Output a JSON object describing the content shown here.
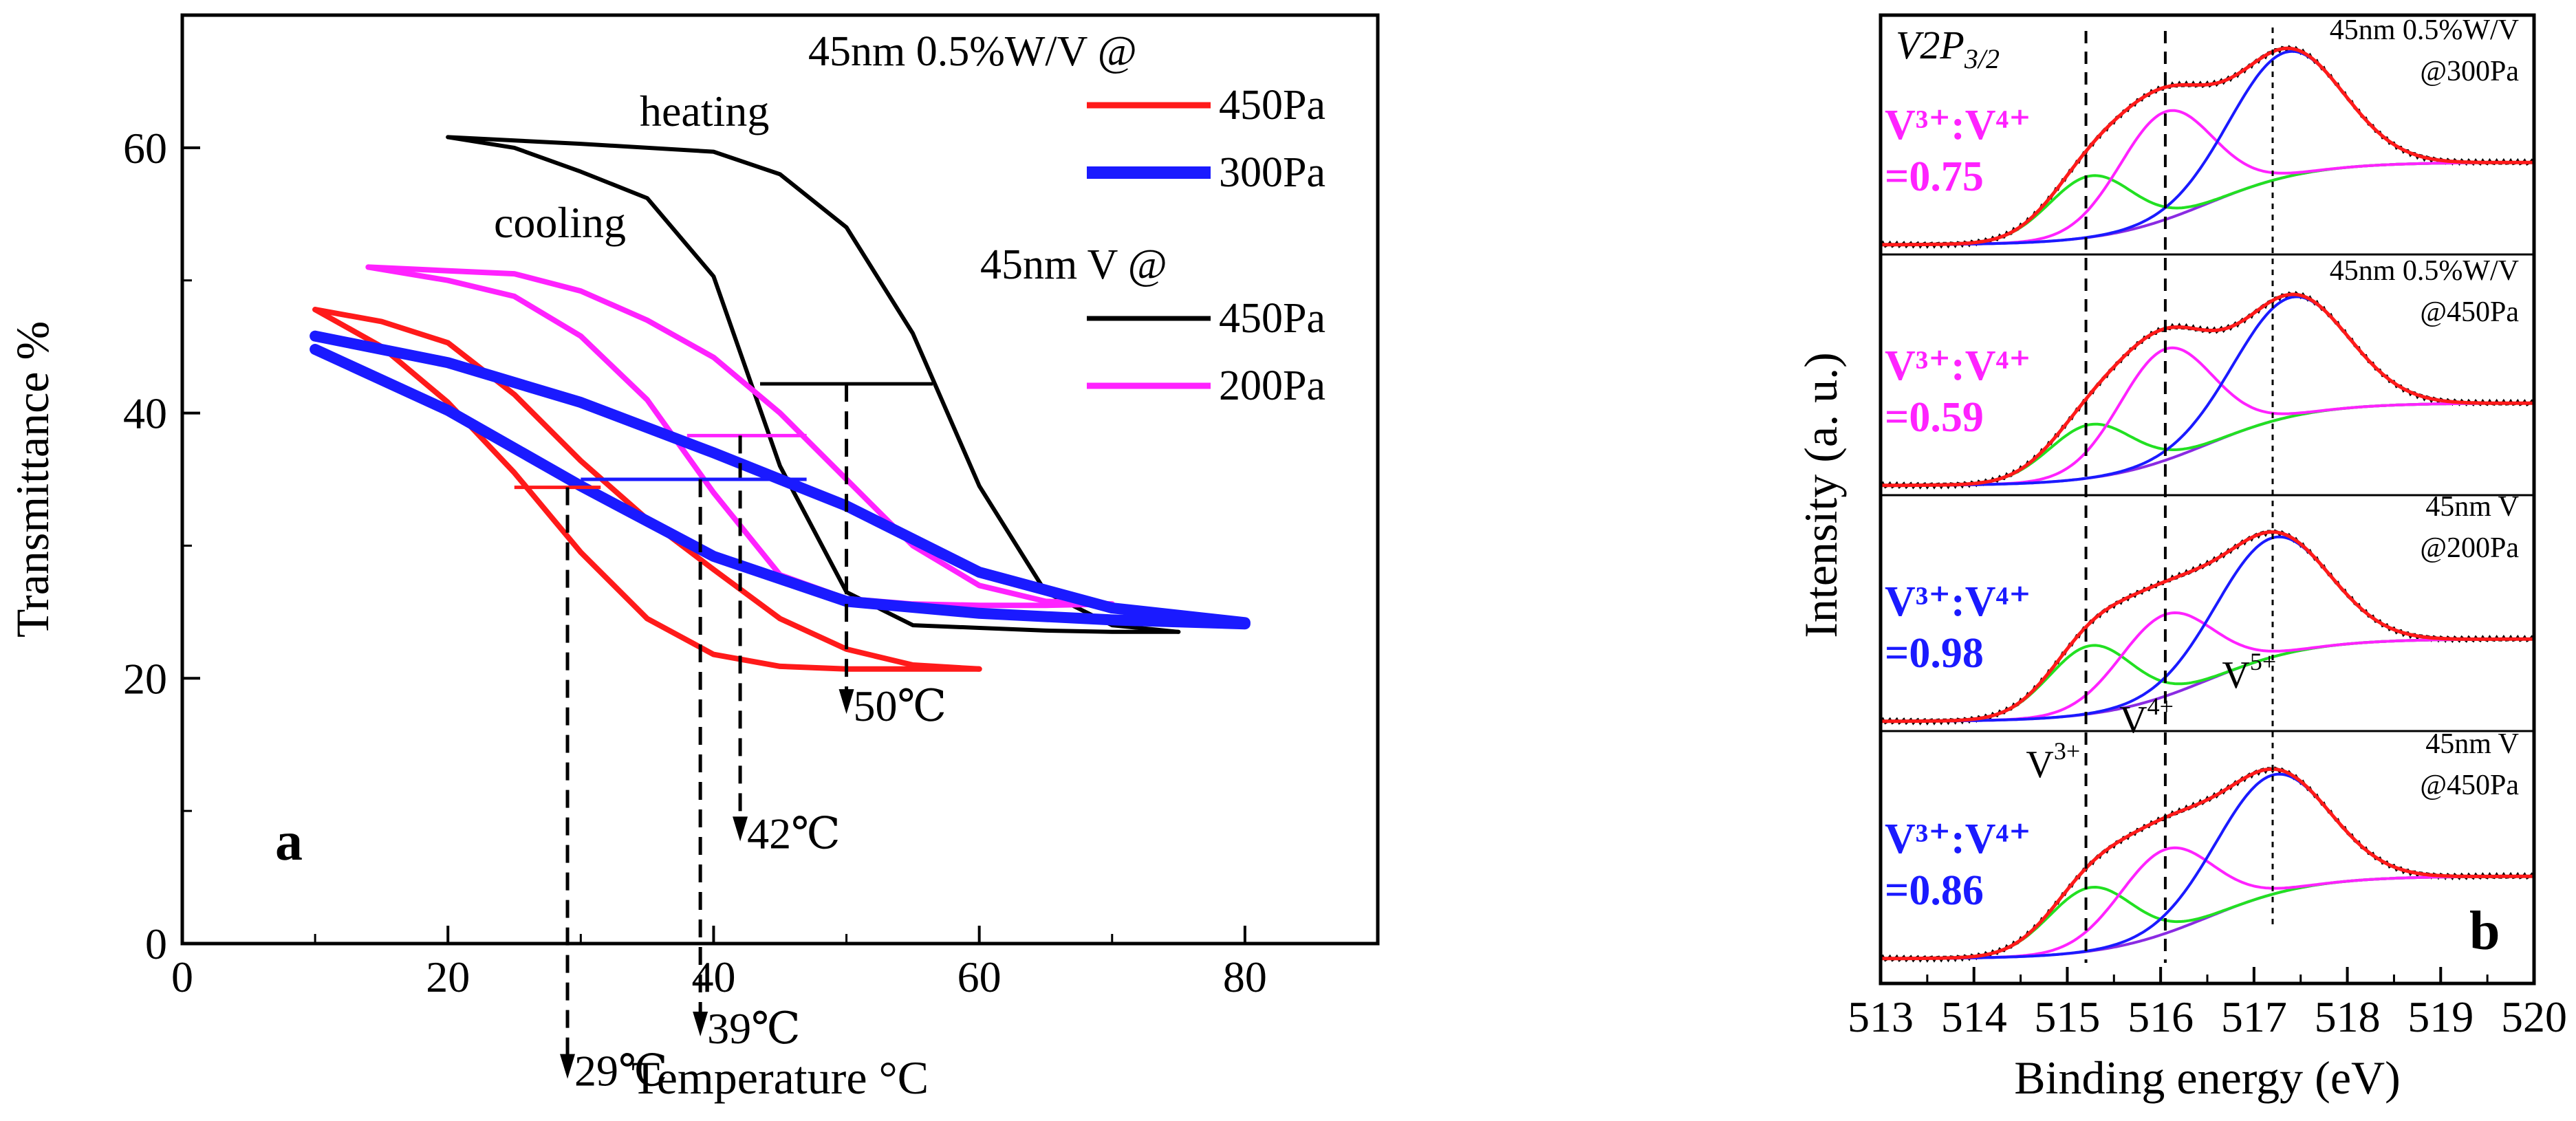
{
  "chart_data": [
    {
      "type": "line",
      "panel_label": "a",
      "xlabel": "Temperature °C",
      "ylabel": "Transmittance %",
      "xlim": [
        0,
        90
      ],
      "ylim": [
        0,
        70
      ],
      "xticks": [
        0,
        20,
        40,
        60,
        80
      ],
      "yticks": [
        0,
        20,
        40,
        60
      ],
      "legend_groups": [
        {
          "title": "45nm 0.5%W/V @",
          "entries": [
            {
              "label": "450Pa",
              "color": "#ff1a1a",
              "width": 9
            },
            {
              "label": "300Pa",
              "color": "#1a1aff",
              "width": 18
            }
          ]
        },
        {
          "title": "45nm V @",
          "entries": [
            {
              "label": "450Pa",
              "color": "#000000",
              "width": 7
            },
            {
              "label": "200Pa",
              "color": "#ff22ff",
              "width": 9
            }
          ]
        }
      ],
      "annotations": {
        "heating": "heating",
        "cooling": "cooling"
      },
      "series": [
        {
          "color": "#000000",
          "width": 6,
          "heating": [
            [
              20,
              60.8
            ],
            [
              30,
              60.3
            ],
            [
              40,
              59.7
            ],
            [
              45,
              58
            ],
            [
              50,
              54
            ],
            [
              55,
              46
            ],
            [
              60,
              34.5
            ],
            [
              65,
              26.5
            ],
            [
              70,
              24
            ],
            [
              75,
              23.5
            ]
          ],
          "cooling": [
            [
              20,
              60.8
            ],
            [
              25,
              60
            ],
            [
              30,
              58.2
            ],
            [
              35,
              56.2
            ],
            [
              40,
              50.3
            ],
            [
              45,
              36
            ],
            [
              50,
              26.5
            ],
            [
              55,
              24
            ],
            [
              60,
              23.8
            ],
            [
              65,
              23.6
            ],
            [
              70,
              23.5
            ],
            [
              75,
              23.5
            ]
          ]
        },
        {
          "color": "#ff22ff",
          "width": 8,
          "heating": [
            [
              14,
              51
            ],
            [
              25,
              50.5
            ],
            [
              30,
              49.2
            ],
            [
              35,
              47
            ],
            [
              40,
              44.2
            ],
            [
              45,
              40
            ],
            [
              50,
              35
            ],
            [
              55,
              30
            ],
            [
              60,
              27
            ],
            [
              65,
              25.8
            ],
            [
              70,
              25.6
            ]
          ],
          "cooling": [
            [
              14,
              51
            ],
            [
              20,
              50
            ],
            [
              25,
              48.8
            ],
            [
              30,
              45.8
            ],
            [
              35,
              41
            ],
            [
              40,
              34
            ],
            [
              45,
              27.8
            ],
            [
              50,
              26
            ],
            [
              55,
              25.6
            ],
            [
              60,
              25.5
            ],
            [
              65,
              25.5
            ],
            [
              70,
              25.6
            ]
          ]
        },
        {
          "color": "#ff1a1a",
          "width": 8,
          "heating": [
            [
              10,
              47.8
            ],
            [
              15,
              46.9
            ],
            [
              20,
              45.3
            ],
            [
              25,
              41.4
            ],
            [
              30,
              36.4
            ],
            [
              35,
              32
            ],
            [
              40,
              28.2
            ],
            [
              45,
              24.5
            ],
            [
              50,
              22.2
            ],
            [
              55,
              21
            ],
            [
              60,
              20.7
            ]
          ],
          "cooling": [
            [
              10,
              47.8
            ],
            [
              15,
              45
            ],
            [
              20,
              40.8
            ],
            [
              25,
              35.5
            ],
            [
              30,
              29.5
            ],
            [
              35,
              24.5
            ],
            [
              40,
              21.8
            ],
            [
              45,
              20.9
            ],
            [
              50,
              20.7
            ],
            [
              55,
              20.7
            ],
            [
              60,
              20.7
            ]
          ]
        },
        {
          "color": "#1a1aff",
          "width": 16,
          "heating": [
            [
              10,
              45.8
            ],
            [
              20,
              43.8
            ],
            [
              30,
              40.8
            ],
            [
              40,
              37
            ],
            [
              50,
              33
            ],
            [
              60,
              28
            ],
            [
              70,
              25.3
            ],
            [
              80,
              24.2
            ]
          ],
          "cooling": [
            [
              10,
              44.8
            ],
            [
              20,
              40.2
            ],
            [
              30,
              34.5
            ],
            [
              40,
              29.2
            ],
            [
              50,
              25.8
            ],
            [
              60,
              24.9
            ],
            [
              70,
              24.4
            ],
            [
              80,
              24.1
            ]
          ]
        }
      ],
      "hysteresis_markers": [
        {
          "color": "#000000",
          "x1": 43.5,
          "x2": 56.5,
          "y": 42.2,
          "xmid": 50,
          "label": "50℃"
        },
        {
          "color": "#ff22ff",
          "x1": 38,
          "x2": 47,
          "y": 38.3,
          "xmid": 42,
          "label": "42℃"
        },
        {
          "color": "#1a1aff",
          "x1": 30,
          "x2": 47,
          "y": 35,
          "xmid": 39,
          "label": "39℃"
        },
        {
          "color": "#ff1a1a",
          "x1": 25,
          "x2": 31.5,
          "y": 34.4,
          "xmid": 29,
          "label": "29℃"
        }
      ]
    },
    {
      "type": "line",
      "panel_label": "b",
      "xlabel": "Binding energy (eV)",
      "ylabel": "Intensity (a. u.)",
      "xlim": [
        513,
        520
      ],
      "xticks": [
        513,
        514,
        515,
        516,
        517,
        518,
        519,
        520
      ],
      "title_math": {
        "main": "V2P",
        "sub": "3/2"
      },
      "reference_lines": [
        515.2,
        516.05,
        517.2
      ],
      "peak_labels": [
        {
          "base": "V",
          "sup": "3+",
          "x": 515.0
        },
        {
          "base": "V",
          "sup": "4+",
          "x": 516.0
        },
        {
          "base": "V",
          "sup": "5+",
          "x": 517.1
        }
      ],
      "components": {
        "envelope": "#ff1a1a",
        "v3": "#22e022",
        "v4": "#ff22ff",
        "v5": "#1a1aff",
        "background": "#8a2be2",
        "raw": "#000000"
      },
      "spectra": [
        {
          "line1": "45nm 0.5%W/V",
          "line2": "@300Pa",
          "ratio_label": "V³⁺:V⁴⁺",
          "ratio_value": "=0.75",
          "ratio_color": "#ff22ff",
          "peaks": {
            "v3": 0.54,
            "v4": 0.95,
            "v5": 1.1,
            "c5": 517.35
          }
        },
        {
          "line1": "45nm 0.5%W/V",
          "line2": "@450Pa",
          "ratio_label": "V³⁺:V⁴⁺",
          "ratio_value": "=0.59",
          "ratio_color": "#ff22ff",
          "peaks": {
            "v3": 0.47,
            "v4": 0.98,
            "v5": 1.05,
            "c5": 517.4
          }
        },
        {
          "line1": "45nm V",
          "line2": "@200Pa",
          "ratio_label": "V³⁺:V⁴⁺",
          "ratio_value": "=0.98",
          "ratio_color": "#1a1aff",
          "peaks": {
            "v3": 0.6,
            "v4": 0.72,
            "v5": 1.05,
            "c5": 517.2
          }
        },
        {
          "line1": "45nm V",
          "line2": "@450Pa",
          "ratio_label": "V³⁺:V⁴⁺",
          "ratio_value": "=0.86",
          "ratio_color": "#1a1aff",
          "peaks": {
            "v3": 0.56,
            "v4": 0.74,
            "v5": 1.05,
            "c5": 517.2
          }
        }
      ]
    }
  ]
}
